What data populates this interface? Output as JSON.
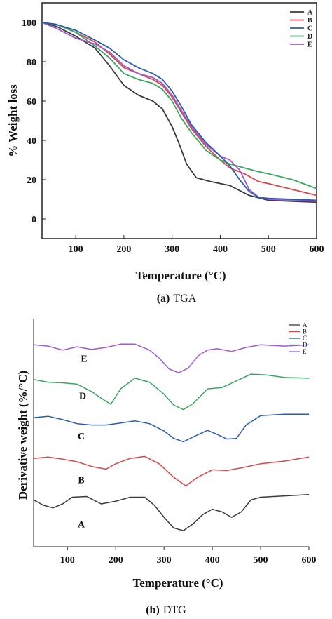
{
  "chart_data": [
    {
      "type": "line",
      "xlabel": "Temperature (°C)",
      "ylabel": "% Weight loss",
      "xlim": [
        30,
        600
      ],
      "ylim": [
        -10,
        110
      ],
      "xticks": [
        100,
        200,
        300,
        400,
        500,
        600
      ],
      "yticks": [
        0,
        20,
        40,
        60,
        80,
        100
      ],
      "legend_position": "top-right",
      "caption_prefix": "(a)",
      "caption_text": "TGA",
      "colors": {
        "A": "#3a3a3a",
        "B": "#d64848",
        "C": "#2a5db0",
        "D": "#3aa860",
        "E": "#a25ad0"
      },
      "series": [
        {
          "name": "A",
          "x": [
            30,
            60,
            100,
            140,
            170,
            200,
            230,
            260,
            280,
            300,
            315,
            330,
            350,
            380,
            420,
            460,
            500,
            550,
            600
          ],
          "y": [
            100,
            98,
            93,
            87,
            78,
            68,
            63,
            60,
            56,
            47,
            38,
            28,
            21,
            19,
            17,
            12,
            9.5,
            9,
            8.5
          ]
        },
        {
          "name": "B",
          "x": [
            30,
            60,
            100,
            140,
            170,
            200,
            230,
            260,
            280,
            300,
            320,
            340,
            370,
            400,
            420,
            450,
            480,
            500,
            550,
            600
          ],
          "y": [
            100,
            99,
            95,
            90,
            84,
            77,
            74,
            71,
            68,
            62,
            54,
            46,
            37,
            30,
            26,
            23,
            19,
            18,
            15,
            12
          ]
        },
        {
          "name": "C",
          "x": [
            30,
            60,
            100,
            140,
            170,
            200,
            230,
            260,
            280,
            300,
            320,
            340,
            370,
            400,
            420,
            440,
            460,
            480,
            500,
            550,
            600
          ],
          "y": [
            100,
            99,
            96,
            91,
            87,
            81,
            77,
            74,
            71,
            65,
            57,
            48,
            39,
            32,
            27,
            20,
            14,
            11,
            10.5,
            10,
            9.5
          ]
        },
        {
          "name": "D",
          "x": [
            30,
            60,
            100,
            140,
            170,
            200,
            230,
            260,
            280,
            300,
            320,
            340,
            370,
            400,
            420,
            450,
            480,
            500,
            550,
            600
          ],
          "y": [
            100,
            99,
            95,
            88,
            82,
            74,
            71,
            69,
            66,
            60,
            51,
            44,
            35,
            30,
            28,
            26,
            24,
            23,
            20,
            15.5
          ]
        },
        {
          "name": "E",
          "x": [
            30,
            60,
            100,
            140,
            170,
            200,
            230,
            260,
            280,
            300,
            320,
            340,
            370,
            400,
            420,
            440,
            460,
            480,
            500,
            550,
            600
          ],
          "y": [
            100,
            97,
            92,
            89,
            85,
            78,
            74,
            72,
            69,
            63,
            55,
            47,
            38,
            32,
            30,
            25,
            15,
            11,
            10,
            9.5,
            9
          ]
        }
      ]
    },
    {
      "type": "line",
      "xlabel": "Temperature (°C)",
      "ylabel": "Derivative weight (%/°C)",
      "xlim": [
        30,
        600
      ],
      "xticks": [
        100,
        200,
        300,
        400,
        500,
        600
      ],
      "legend_position": "top-right",
      "caption_prefix": "(b)",
      "caption_text": "DTG",
      "colors": {
        "A": "#3a3a3a",
        "B": "#d64848",
        "C": "#2a5db0",
        "D": "#3aa860",
        "E": "#a25ad0"
      },
      "series": [
        {
          "name": "A",
          "label": "A",
          "x": [
            30,
            50,
            70,
            90,
            110,
            140,
            170,
            200,
            230,
            260,
            280,
            300,
            320,
            340,
            360,
            380,
            400,
            420,
            440,
            460,
            480,
            500,
            550,
            600
          ],
          "y": [
            -13.0,
            -13.8,
            -14.2,
            -13.6,
            -12.6,
            -12.5,
            -13.6,
            -13.2,
            -12.6,
            -12.6,
            -13.8,
            -15.6,
            -17.2,
            -17.6,
            -16.6,
            -15.2,
            -14.4,
            -14.8,
            -15.6,
            -14.8,
            -13.0,
            -12.6,
            -12.4,
            -12.2
          ]
        },
        {
          "name": "B",
          "label": "B",
          "x": [
            30,
            60,
            90,
            120,
            150,
            180,
            200,
            230,
            260,
            290,
            320,
            345,
            370,
            400,
            430,
            460,
            500,
            550,
            600
          ],
          "y": [
            -6.8,
            -6.6,
            -6.9,
            -7.3,
            -8.0,
            -8.4,
            -7.6,
            -6.8,
            -6.5,
            -7.6,
            -9.6,
            -10.9,
            -9.6,
            -8.5,
            -8.6,
            -8.2,
            -7.6,
            -7.2,
            -6.6
          ]
        },
        {
          "name": "C",
          "label": "C",
          "x": [
            30,
            60,
            90,
            120,
            150,
            180,
            210,
            240,
            270,
            300,
            320,
            340,
            360,
            390,
            410,
            430,
            450,
            470,
            500,
            550,
            600
          ],
          "y": [
            -0.7,
            -0.5,
            -1.0,
            -1.6,
            -1.8,
            -1.8,
            -1.5,
            -1.2,
            -1.6,
            -2.7,
            -3.8,
            -4.3,
            -3.6,
            -2.6,
            -3.2,
            -3.9,
            -3.8,
            -1.8,
            -0.4,
            -0.2,
            -0.2
          ]
        },
        {
          "name": "D",
          "label": "D",
          "x": [
            30,
            60,
            90,
            120,
            150,
            170,
            190,
            210,
            240,
            270,
            300,
            320,
            340,
            360,
            390,
            420,
            450,
            480,
            510,
            550,
            600
          ],
          "y": [
            5.0,
            4.6,
            4.5,
            4.3,
            3.2,
            2.2,
            1.3,
            3.6,
            5.2,
            4.6,
            2.8,
            1.2,
            0.5,
            1.4,
            3.6,
            3.8,
            4.8,
            5.8,
            5.7,
            5.3,
            5.2
          ]
        },
        {
          "name": "E",
          "label": "E",
          "x": [
            30,
            60,
            90,
            120,
            150,
            180,
            210,
            240,
            270,
            290,
            310,
            330,
            350,
            370,
            390,
            410,
            440,
            470,
            500,
            550,
            600
          ],
          "y": [
            10.2,
            10.0,
            9.4,
            9.9,
            9.5,
            9.8,
            10.3,
            10.3,
            9.4,
            8.2,
            6.6,
            6.0,
            6.7,
            8.5,
            9.4,
            9.6,
            9.2,
            9.8,
            10.2,
            10.0,
            10.2
          ]
        }
      ]
    }
  ]
}
